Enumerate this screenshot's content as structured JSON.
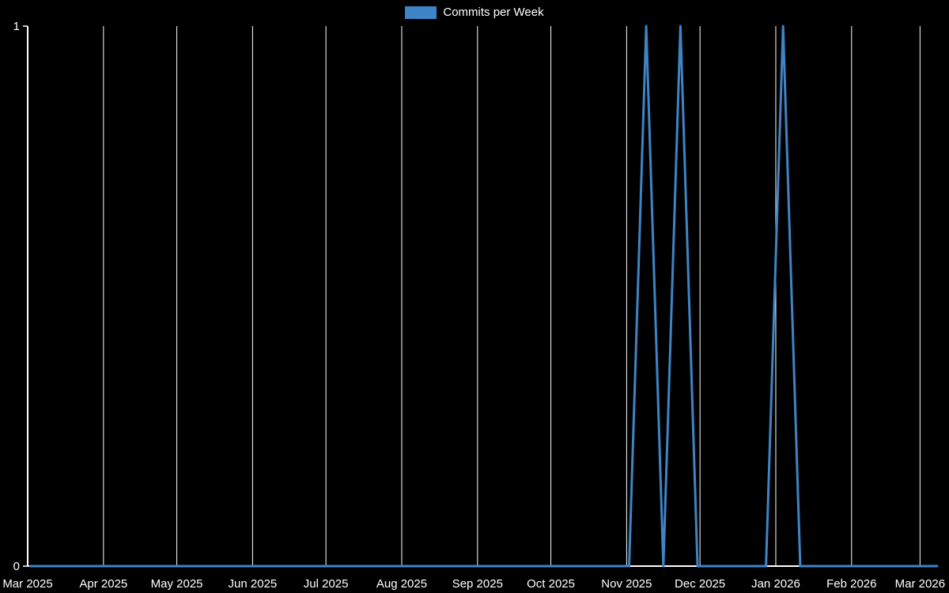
{
  "chart_data": {
    "type": "line",
    "title": "",
    "legend": [
      {
        "label": "Commits per Week",
        "color": "#3d85c6"
      }
    ],
    "colors": {
      "background": "#000000",
      "grid": "#ffffff",
      "axis": "#ffffff",
      "text": "#ffffff",
      "line": "#3d85c6"
    },
    "x_axis": {
      "type": "time",
      "start": "2025-03-01",
      "end": "2026-03-08",
      "ticks": [
        {
          "date": "2025-03-01",
          "label": "Mar 2025"
        },
        {
          "date": "2025-04-01",
          "label": "Apr 2025"
        },
        {
          "date": "2025-05-01",
          "label": "May 2025"
        },
        {
          "date": "2025-06-01",
          "label": "Jun 2025"
        },
        {
          "date": "2025-07-01",
          "label": "Jul 2025"
        },
        {
          "date": "2025-08-01",
          "label": "Aug 2025"
        },
        {
          "date": "2025-09-01",
          "label": "Sep 2025"
        },
        {
          "date": "2025-10-01",
          "label": "Oct 2025"
        },
        {
          "date": "2025-11-01",
          "label": "Nov 2025"
        },
        {
          "date": "2025-12-01",
          "label": "Dec 2025"
        },
        {
          "date": "2026-01-01",
          "label": "Jan 2026"
        },
        {
          "date": "2026-02-01",
          "label": "Feb 2026"
        },
        {
          "date": "2026-03-01",
          "label": "Mar 2026"
        }
      ]
    },
    "y_axis": {
      "min": 0,
      "max": 1,
      "ticks": [
        0,
        1
      ]
    },
    "series": [
      {
        "name": "Commits per Week",
        "color": "#3d85c6",
        "x": [
          "2025-03-02",
          "2025-03-09",
          "2025-03-16",
          "2025-03-23",
          "2025-03-30",
          "2025-04-06",
          "2025-04-13",
          "2025-04-20",
          "2025-04-27",
          "2025-05-04",
          "2025-05-11",
          "2025-05-18",
          "2025-05-25",
          "2025-06-01",
          "2025-06-08",
          "2025-06-15",
          "2025-06-22",
          "2025-06-29",
          "2025-07-06",
          "2025-07-13",
          "2025-07-20",
          "2025-07-27",
          "2025-08-03",
          "2025-08-10",
          "2025-08-17",
          "2025-08-24",
          "2025-08-31",
          "2025-09-07",
          "2025-09-14",
          "2025-09-21",
          "2025-09-28",
          "2025-10-05",
          "2025-10-12",
          "2025-10-19",
          "2025-10-26",
          "2025-11-02",
          "2025-11-09",
          "2025-11-16",
          "2025-11-23",
          "2025-11-30",
          "2025-12-07",
          "2025-12-14",
          "2025-12-21",
          "2025-12-28",
          "2026-01-04",
          "2026-01-11",
          "2026-01-18",
          "2026-01-25",
          "2026-02-01",
          "2026-02-08",
          "2026-02-15",
          "2026-02-22",
          "2026-03-01",
          "2026-03-08"
        ],
        "y": [
          0,
          0,
          0,
          0,
          0,
          0,
          0,
          0,
          0,
          0,
          0,
          0,
          0,
          0,
          0,
          0,
          0,
          0,
          0,
          0,
          0,
          0,
          0,
          0,
          0,
          0,
          0,
          0,
          0,
          0,
          0,
          0,
          0,
          0,
          0,
          0,
          1,
          0,
          1,
          0,
          0,
          0,
          0,
          0,
          1,
          0,
          0,
          0,
          0,
          0,
          0,
          0,
          0,
          0
        ]
      }
    ]
  }
}
